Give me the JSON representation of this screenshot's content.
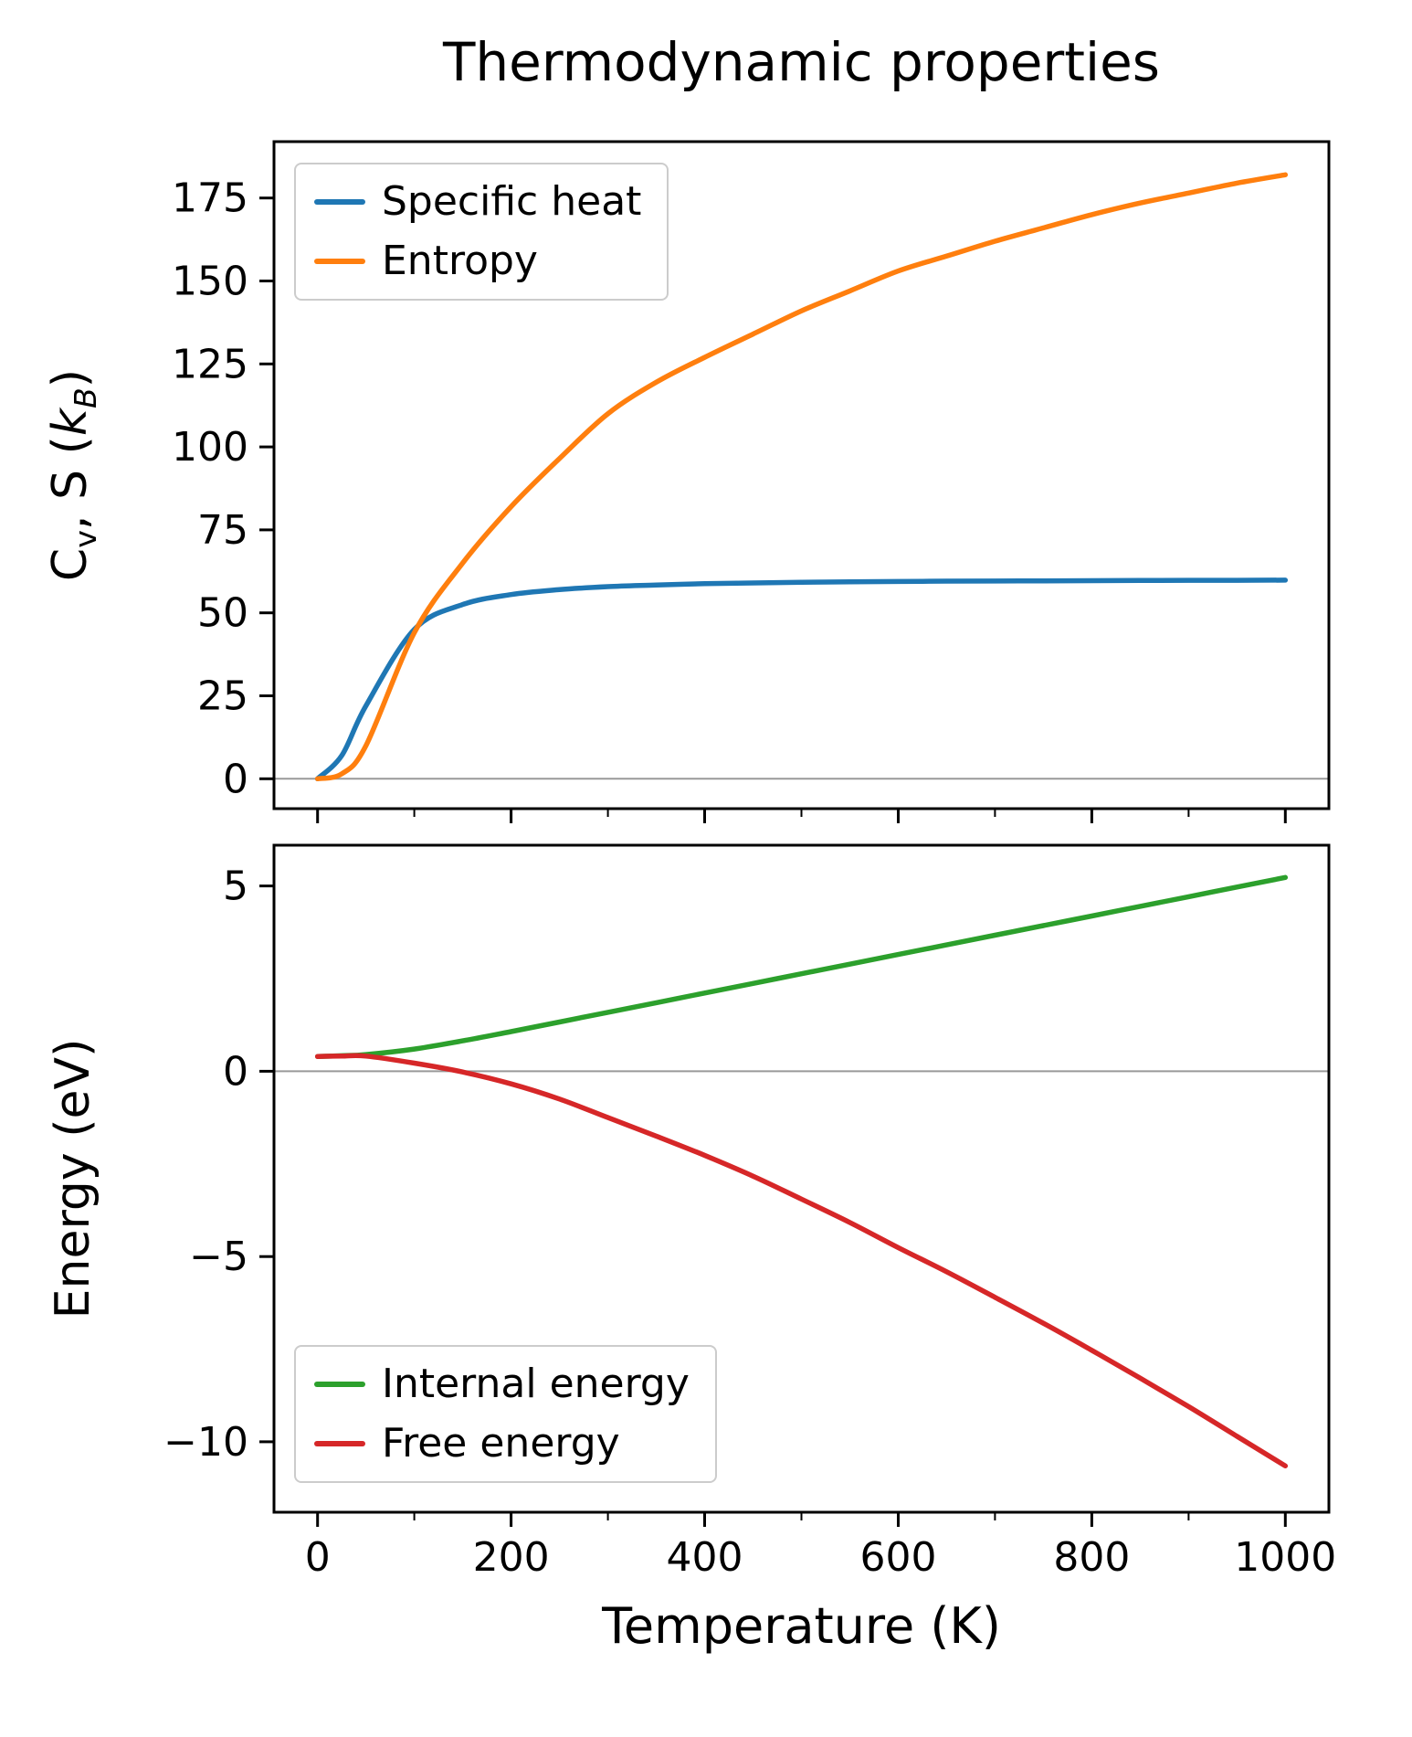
{
  "figure": {
    "background": "#ffffff",
    "text_color": "#000000",
    "zero_line_color": "#999999"
  },
  "chart_data": [
    {
      "type": "line",
      "title": "Thermodynamic properties",
      "xlabel": "",
      "ylabel": "C_v, S (k_B)",
      "ylabel_parts": {
        "c": "C",
        "v": "v",
        "mid": ", S (",
        "k": "k",
        "b": "B",
        "close": ")"
      },
      "xlim": [
        -45,
        1045
      ],
      "ylim": [
        -9,
        192
      ],
      "xticks": [
        0,
        200,
        400,
        600,
        800,
        1000
      ],
      "yticks": [
        0,
        25,
        50,
        75,
        100,
        125,
        150,
        175
      ],
      "xminor": 100,
      "show_x_ticklabels": false,
      "zero_line": true,
      "grid": false,
      "legend_position": "upper left",
      "x": [
        0,
        25,
        50,
        100,
        150,
        200,
        250,
        300,
        350,
        400,
        450,
        500,
        550,
        600,
        650,
        700,
        750,
        800,
        850,
        900,
        950,
        1000
      ],
      "series": [
        {
          "name": "Specific heat",
          "color": "#1f77b4",
          "values": [
            0,
            7,
            22,
            45,
            52.5,
            55.5,
            57,
            57.9,
            58.4,
            58.8,
            59,
            59.2,
            59.35,
            59.45,
            59.55,
            59.6,
            59.65,
            59.7,
            59.75,
            59.8,
            59.82,
            59.85
          ]
        },
        {
          "name": "Entropy",
          "color": "#ff7f0e",
          "values": [
            0,
            1.5,
            10,
            44,
            65,
            82,
            96.5,
            110,
            119.5,
            127,
            134,
            141,
            147,
            153,
            157.5,
            162,
            166,
            170,
            173.5,
            176.5,
            179.5,
            182
          ]
        }
      ]
    },
    {
      "type": "line",
      "title": "",
      "xlabel": "Temperature (K)",
      "ylabel": "Energy (eV)",
      "xlim": [
        -45,
        1045
      ],
      "ylim": [
        -11.9,
        6.1
      ],
      "xticks": [
        0,
        200,
        400,
        600,
        800,
        1000
      ],
      "yticks": [
        5,
        0,
        -5,
        -10
      ],
      "xminor": 100,
      "show_x_ticklabels": true,
      "zero_line": true,
      "grid": false,
      "legend_position": "lower left",
      "x": [
        0,
        25,
        50,
        100,
        150,
        200,
        250,
        300,
        350,
        400,
        450,
        500,
        550,
        600,
        650,
        700,
        750,
        800,
        850,
        900,
        950,
        1000
      ],
      "series": [
        {
          "name": "Internal energy",
          "color": "#2ca02c",
          "values": [
            0.4,
            0.42,
            0.45,
            0.6,
            0.82,
            1.07,
            1.33,
            1.59,
            1.85,
            2.11,
            2.37,
            2.63,
            2.89,
            3.15,
            3.41,
            3.67,
            3.93,
            4.19,
            4.45,
            4.71,
            4.97,
            5.23
          ]
        },
        {
          "name": "Free energy",
          "color": "#d62728",
          "values": [
            0.4,
            0.41,
            0.41,
            0.22,
            -0.02,
            -0.34,
            -0.75,
            -1.25,
            -1.75,
            -2.27,
            -2.83,
            -3.45,
            -4.08,
            -4.76,
            -5.41,
            -6.1,
            -6.8,
            -7.53,
            -8.28,
            -9.05,
            -9.85,
            -10.65
          ]
        }
      ]
    }
  ]
}
